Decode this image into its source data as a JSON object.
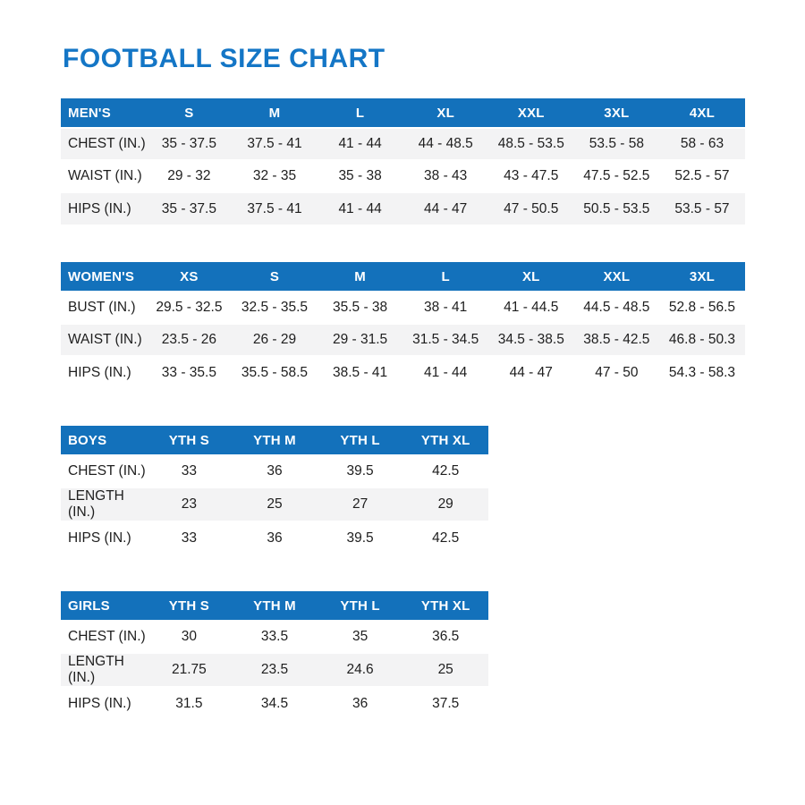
{
  "page": {
    "title": "FOOTBALL SIZE CHART"
  },
  "colors": {
    "title_blue": "#1476c6",
    "header_blue": "#1371bb",
    "row_shade": "#f3f3f4",
    "text": "#1e1e1e"
  },
  "chart_data": [
    {
      "type": "table",
      "title": "MEN'S",
      "columns": [
        "S",
        "M",
        "L",
        "XL",
        "XXL",
        "3XL",
        "4XL"
      ],
      "rows": [
        {
          "label": "CHEST (IN.)",
          "values": [
            "35 - 37.5",
            "37.5 - 41",
            "41 - 44",
            "44 - 48.5",
            "48.5 - 53.5",
            "53.5 - 58",
            "58 - 63"
          ]
        },
        {
          "label": "WAIST (IN.)",
          "values": [
            "29 - 32",
            "32 - 35",
            "35 - 38",
            "38 - 43",
            "43 - 47.5",
            "47.5 - 52.5",
            "52.5 - 57"
          ]
        },
        {
          "label": "HIPS (IN.)",
          "values": [
            "35 - 37.5",
            "37.5 - 41",
            "41 - 44",
            "44 - 47",
            "47 - 50.5",
            "50.5 - 53.5",
            "53.5 - 57"
          ]
        }
      ],
      "shaded_rows": [
        0,
        2
      ]
    },
    {
      "type": "table",
      "title": "WOMEN'S",
      "columns": [
        "XS",
        "S",
        "M",
        "L",
        "XL",
        "XXL",
        "3XL"
      ],
      "rows": [
        {
          "label": "BUST (IN.)",
          "values": [
            "29.5 - 32.5",
            "32.5 - 35.5",
            "35.5 - 38",
            "38 - 41",
            "41 - 44.5",
            "44.5 - 48.5",
            "52.8 - 56.5"
          ]
        },
        {
          "label": "WAIST (IN.)",
          "values": [
            "23.5 - 26",
            "26 - 29",
            "29 - 31.5",
            "31.5 - 34.5",
            "34.5 - 38.5",
            "38.5 - 42.5",
            "46.8 - 50.3"
          ]
        },
        {
          "label": "HIPS (IN.)",
          "values": [
            "33 - 35.5",
            "35.5 - 58.5",
            "38.5 - 41",
            "41 - 44",
            "44 - 47",
            "47 - 50",
            "54.3 - 58.3"
          ]
        }
      ],
      "shaded_rows": [
        1
      ]
    },
    {
      "type": "table",
      "title": "BOYS",
      "columns": [
        "YTH S",
        "YTH M",
        "YTH L",
        "YTH XL"
      ],
      "rows": [
        {
          "label": "CHEST (IN.)",
          "values": [
            "33",
            "36",
            "39.5",
            "42.5"
          ]
        },
        {
          "label": "LENGTH (IN.)",
          "values": [
            "23",
            "25",
            "27",
            "29"
          ]
        },
        {
          "label": "HIPS (IN.)",
          "values": [
            "33",
            "36",
            "39.5",
            "42.5"
          ]
        }
      ],
      "shaded_rows": [
        1
      ]
    },
    {
      "type": "table",
      "title": "GIRLS",
      "columns": [
        "YTH S",
        "YTH M",
        "YTH L",
        "YTH XL"
      ],
      "rows": [
        {
          "label": "CHEST (IN.)",
          "values": [
            "30",
            "33.5",
            "35",
            "36.5"
          ]
        },
        {
          "label": "LENGTH (IN.)",
          "values": [
            "21.75",
            "23.5",
            "24.6",
            "25"
          ]
        },
        {
          "label": "HIPS (IN.)",
          "values": [
            "31.5",
            "34.5",
            "36",
            "37.5"
          ]
        }
      ],
      "shaded_rows": [
        1
      ]
    }
  ]
}
